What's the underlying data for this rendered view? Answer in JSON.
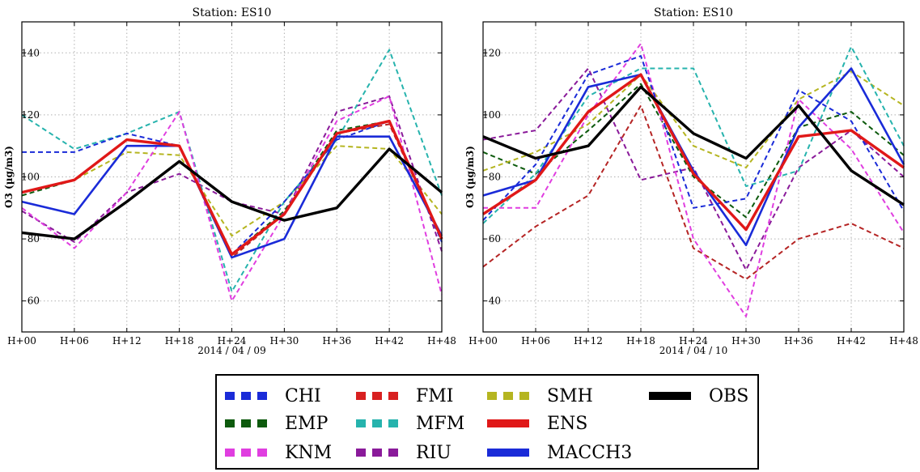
{
  "chart_data": [
    {
      "type": "line",
      "title": "Station: ES10",
      "xlabel": "2014 / 04 / 09",
      "ylabel": "O3 (µg/m3)",
      "categories": [
        "H+00",
        "H+06",
        "H+12",
        "H+18",
        "H+24",
        "H+30",
        "H+36",
        "H+42",
        "H+48"
      ],
      "ylim": [
        50,
        150
      ],
      "yticks": [
        60,
        80,
        100,
        120,
        140
      ],
      "grid": true,
      "series": [
        {
          "name": "CHI",
          "values": [
            108,
            108,
            114,
            110,
            75,
            92,
            112,
            118,
            79
          ]
        },
        {
          "name": "EMP",
          "values": [
            94,
            99,
            112,
            110,
            75,
            89,
            115,
            118,
            80
          ]
        },
        {
          "name": "KNM",
          "values": [
            90,
            77,
            95,
            121,
            60,
            88,
            118,
            126,
            62
          ]
        },
        {
          "name": "FMI",
          "values": [
            95,
            99,
            112,
            110,
            74,
            88,
            114,
            117,
            80
          ]
        },
        {
          "name": "MFM",
          "values": [
            120,
            109,
            114,
            121,
            63,
            92,
            112,
            141,
            94
          ]
        },
        {
          "name": "RIU",
          "values": [
            89,
            79,
            95,
            101,
            92,
            88,
            121,
            126,
            76
          ]
        },
        {
          "name": "SMH",
          "values": [
            95,
            99,
            108,
            107,
            81,
            92,
            110,
            109,
            88
          ]
        },
        {
          "name": "ENS",
          "values": [
            95,
            99,
            112,
            110,
            75,
            88,
            114,
            118,
            80
          ]
        },
        {
          "name": "MACCH3",
          "values": [
            92,
            88,
            110,
            110,
            74,
            80,
            113,
            113,
            81
          ]
        },
        {
          "name": "OBS",
          "values": [
            82,
            80,
            92,
            105,
            92,
            86,
            90,
            109,
            95
          ]
        }
      ]
    },
    {
      "type": "line",
      "title": "Station: ES10",
      "xlabel": "2014 / 04 / 10",
      "ylabel": "O3 (µg/m3)",
      "categories": [
        "H+00",
        "H+06",
        "H+12",
        "H+18",
        "H+24",
        "H+30",
        "H+36",
        "H+42",
        "H+48"
      ],
      "ylim": [
        30,
        130
      ],
      "yticks": [
        40,
        60,
        80,
        100,
        120
      ],
      "grid": true,
      "series": [
        {
          "name": "CHI",
          "values": [
            66,
            84,
            113,
            119,
            70,
            73,
            108,
            98,
            69
          ]
        },
        {
          "name": "EMP",
          "values": [
            88,
            81,
            95,
            110,
            80,
            67,
            96,
            101,
            87
          ]
        },
        {
          "name": "KNM",
          "values": [
            70,
            70,
            100,
            123,
            60,
            35,
            105,
            89,
            62
          ]
        },
        {
          "name": "FMI",
          "values": [
            51,
            64,
            74,
            103,
            57,
            47,
            60,
            65,
            57
          ]
        },
        {
          "name": "MFM",
          "values": [
            65,
            81,
            106,
            115,
            115,
            77,
            82,
            122,
            90
          ]
        },
        {
          "name": "RIU",
          "values": [
            92,
            95,
            115,
            79,
            83,
            50,
            83,
            95,
            80
          ]
        },
        {
          "name": "SMH",
          "values": [
            82,
            88,
            97,
            113,
            90,
            83,
            105,
            114,
            103
          ]
        },
        {
          "name": "ENS",
          "values": [
            68,
            79,
            101,
            113,
            81,
            63,
            93,
            95,
            83
          ]
        },
        {
          "name": "MACCH3",
          "values": [
            74,
            79,
            109,
            113,
            82,
            58,
            96,
            115,
            84
          ]
        },
        {
          "name": "OBS",
          "values": [
            93,
            86,
            90,
            109,
            94,
            86,
            103,
            82,
            71
          ]
        }
      ]
    }
  ],
  "legend": {
    "placement": "bottom-center",
    "entries": [
      {
        "name": "CHI",
        "color": "#1a2bd8",
        "style": "dashed"
      },
      {
        "name": "EMP",
        "color": "#0d5a0d",
        "style": "dashed"
      },
      {
        "name": "KNM",
        "color": "#e03ee0",
        "style": "dashed"
      },
      {
        "name": "FMI",
        "color": "#d82020",
        "style": "dashed"
      },
      {
        "name": "MFM",
        "color": "#26b3ad",
        "style": "dashed"
      },
      {
        "name": "RIU",
        "color": "#8a1a9a",
        "style": "dashed"
      },
      {
        "name": "SMH",
        "color": "#b5b520",
        "style": "dashed"
      },
      {
        "name": "ENS",
        "color": "#e01818",
        "style": "solid"
      },
      {
        "name": "MACCH3",
        "color": "#1a2bd8",
        "style": "solid"
      },
      {
        "name": "OBS",
        "color": "#000000",
        "style": "solid"
      }
    ]
  },
  "series_colors": {
    "CHI": "#1a2bd8",
    "EMP": "#0d5a0d",
    "KNM": "#e03ee0",
    "FMI": "#b52424",
    "MFM": "#26b3ad",
    "RIU": "#8a1a9a",
    "SMH": "#b5b520",
    "ENS": "#e01818",
    "MACCH3": "#1a2bd8",
    "OBS": "#000000"
  }
}
